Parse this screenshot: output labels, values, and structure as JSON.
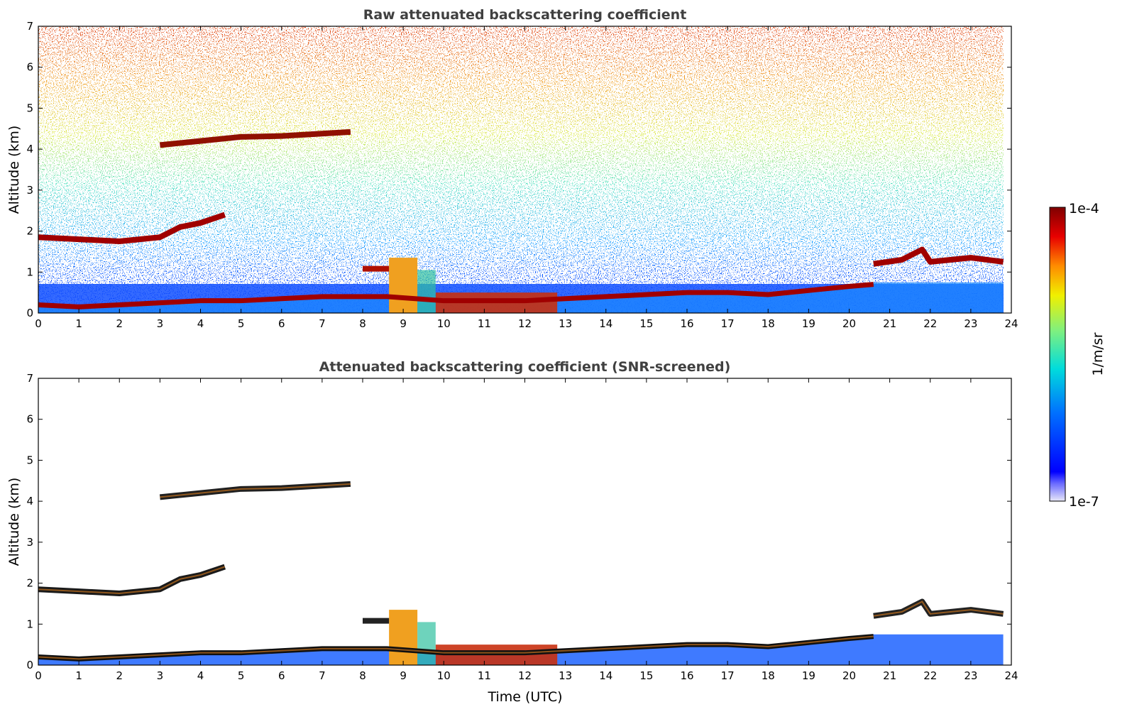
{
  "chart_data": [
    {
      "type": "heatmap",
      "title": "Raw attenuated backscattering coefficient",
      "xlabel": "",
      "ylabel": "Altitude (km)",
      "xlim": [
        0,
        24
      ],
      "ylim": [
        0,
        7
      ],
      "xticks": [
        "0",
        "1",
        "2",
        "3",
        "4",
        "5",
        "6",
        "7",
        "8",
        "9",
        "10",
        "11",
        "12",
        "13",
        "14",
        "15",
        "16",
        "17",
        "18",
        "19",
        "20",
        "21",
        "22",
        "23",
        "24"
      ],
      "yticks": [
        "0",
        "1",
        "2",
        "3",
        "4",
        "5",
        "6",
        "7"
      ],
      "features": [
        {
          "name": "boundary layer top",
          "points": [
            [
              0,
              0.2
            ],
            [
              1,
              0.15
            ],
            [
              2,
              0.2
            ],
            [
              3,
              0.25
            ],
            [
              4,
              0.3
            ],
            [
              5,
              0.3
            ],
            [
              6,
              0.35
            ],
            [
              7,
              0.4
            ],
            [
              8.6,
              0.4
            ],
            [
              10,
              0.3
            ],
            [
              11,
              0.3
            ],
            [
              12,
              0.3
            ],
            [
              13,
              0.35
            ],
            [
              14,
              0.4
            ],
            [
              15,
              0.45
            ],
            [
              16,
              0.5
            ],
            [
              17,
              0.5
            ],
            [
              18,
              0.45
            ],
            [
              19,
              0.55
            ],
            [
              20,
              0.65
            ],
            [
              20.6,
              0.7
            ]
          ]
        },
        {
          "name": "mid-level cloud layer",
          "points": [
            [
              0,
              1.85
            ],
            [
              1,
              1.8
            ],
            [
              2,
              1.75
            ],
            [
              3,
              1.85
            ],
            [
              3.5,
              2.1
            ],
            [
              4,
              2.2
            ],
            [
              4.6,
              2.4
            ]
          ]
        },
        {
          "name": "upper cloud layer",
          "points": [
            [
              3,
              4.1
            ],
            [
              4,
              4.2
            ],
            [
              5,
              4.3
            ],
            [
              6,
              4.32
            ],
            [
              7,
              4.38
            ],
            [
              7.7,
              4.42
            ]
          ]
        },
        {
          "name": "low cloud layer",
          "points": [
            [
              20.6,
              1.2
            ],
            [
              21.3,
              1.3
            ],
            [
              21.8,
              1.55
            ],
            [
              22,
              1.25
            ],
            [
              23,
              1.35
            ],
            [
              23.8,
              1.25
            ]
          ]
        }
      ]
    },
    {
      "type": "heatmap",
      "title": "Attenuated backscattering coefficient (SNR-screened)",
      "xlabel": "Time (UTC)",
      "ylabel": "Altitude (km)",
      "xlim": [
        0,
        24
      ],
      "ylim": [
        0,
        7
      ],
      "xticks": [
        "0",
        "1",
        "2",
        "3",
        "4",
        "5",
        "6",
        "7",
        "8",
        "9",
        "10",
        "11",
        "12",
        "13",
        "14",
        "15",
        "16",
        "17",
        "18",
        "19",
        "20",
        "21",
        "22",
        "23",
        "24"
      ],
      "yticks": [
        "0",
        "1",
        "2",
        "3",
        "4",
        "5",
        "6",
        "7"
      ]
    }
  ],
  "colorbar": {
    "label": "1/m/sr",
    "max_label": "1e-4",
    "min_label": "1e-7",
    "scale": "log",
    "colors": [
      "#00007f",
      "#0000ff",
      "#0080ff",
      "#00e5e5",
      "#7fff7f",
      "#ffff00",
      "#ff8000",
      "#ff0000",
      "#7f0000"
    ]
  }
}
